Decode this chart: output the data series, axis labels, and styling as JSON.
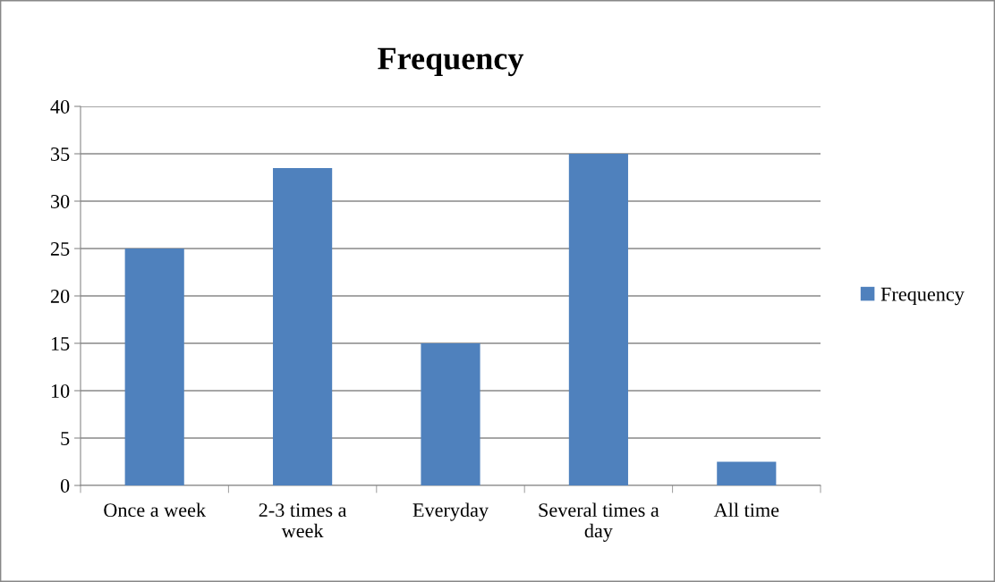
{
  "chart_data": {
    "type": "bar",
    "title": "Frequency",
    "categories": [
      "Once a week",
      "2-3 times a\nweek",
      "Everyday",
      "Several times a\nday",
      "All time"
    ],
    "series": [
      {
        "name": "Frequency",
        "color": "#4f81bd",
        "values": [
          25,
          33.5,
          15,
          35,
          2.5
        ]
      }
    ],
    "ylim": [
      0,
      40
    ],
    "yticks": [
      0,
      5,
      10,
      15,
      20,
      25,
      30,
      35,
      40
    ],
    "grid": "y",
    "legend": "right"
  }
}
